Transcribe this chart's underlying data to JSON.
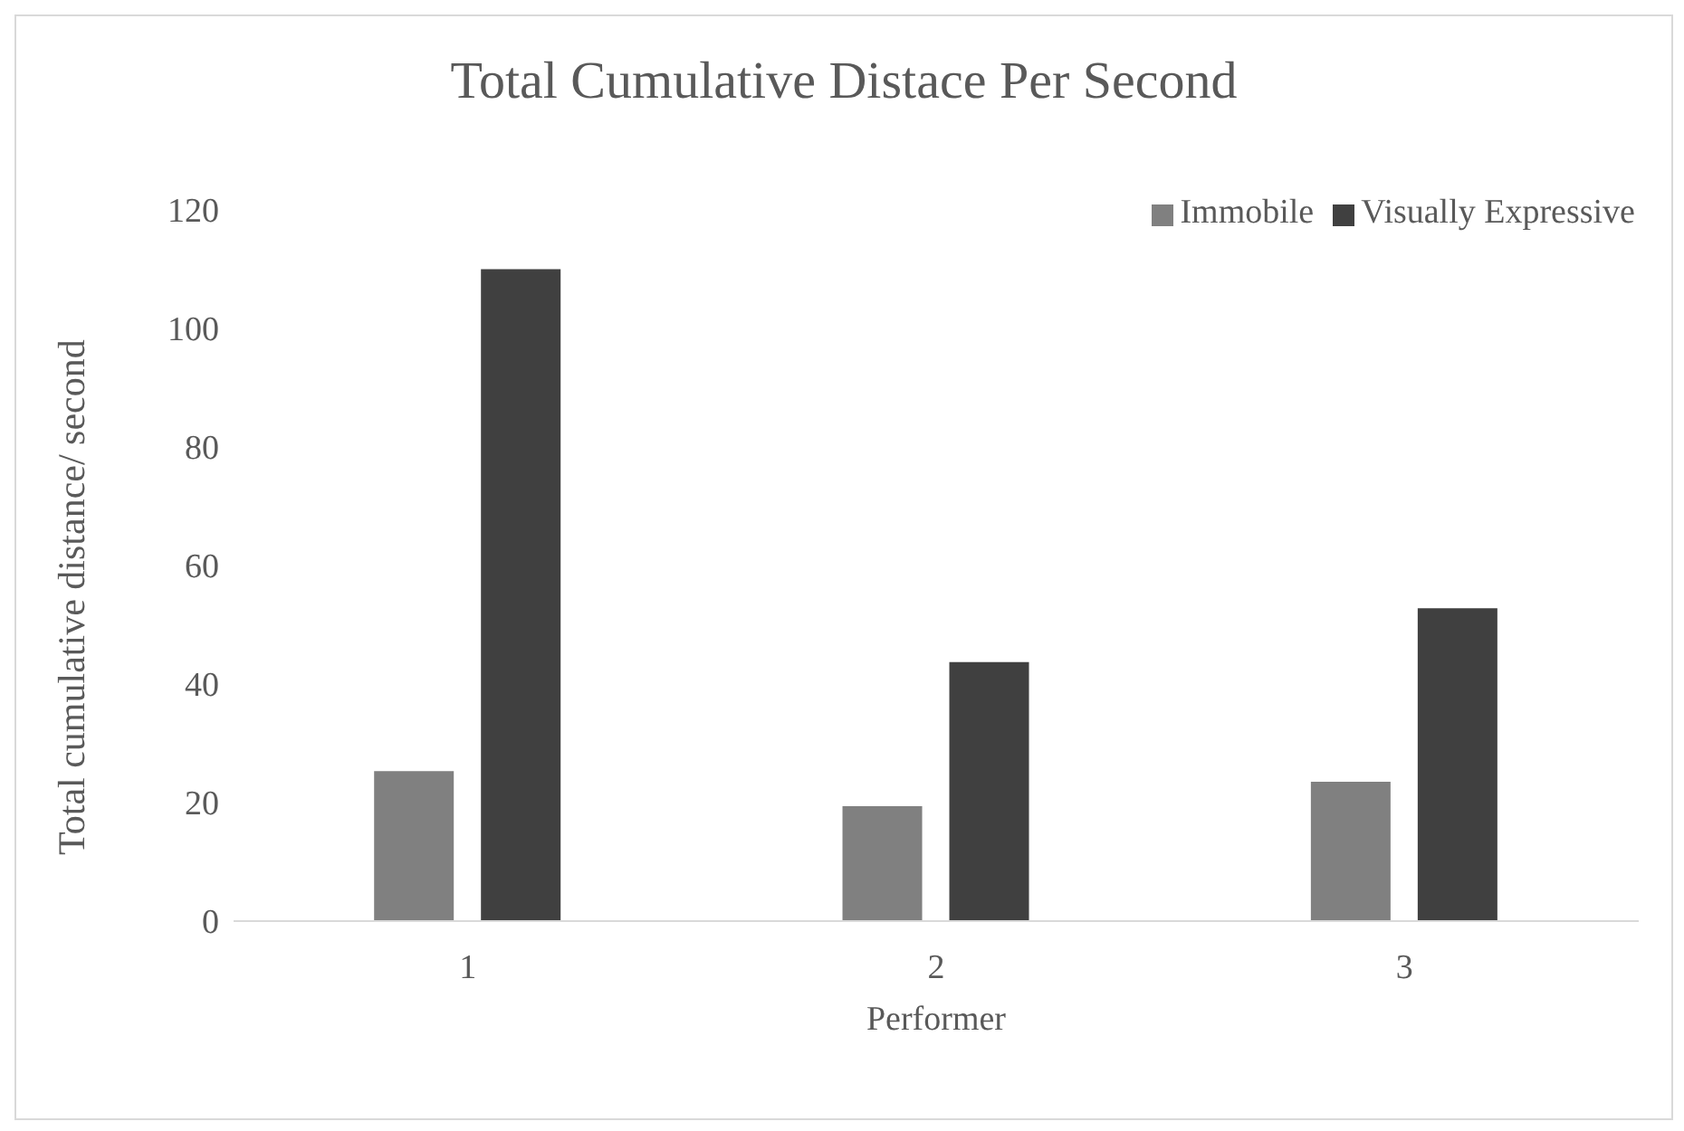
{
  "chart_data": {
    "type": "bar",
    "title": "Total Cumulative Distace Per Second",
    "xlabel": "Performer",
    "ylabel": "Total cumulative distance/ second",
    "categories": [
      "1",
      "2",
      "3"
    ],
    "series": [
      {
        "name": "Immobile",
        "color": "#808080",
        "values": [
          25.3,
          19.4,
          23.5
        ]
      },
      {
        "name": "Visually Expressive",
        "color": "#404040",
        "values": [
          110,
          43.7,
          52.8
        ]
      }
    ],
    "ylim": [
      0,
      120
    ],
    "yticks": [
      0,
      20,
      40,
      60,
      80,
      100,
      120
    ],
    "grid": false,
    "legend": "top right"
  }
}
